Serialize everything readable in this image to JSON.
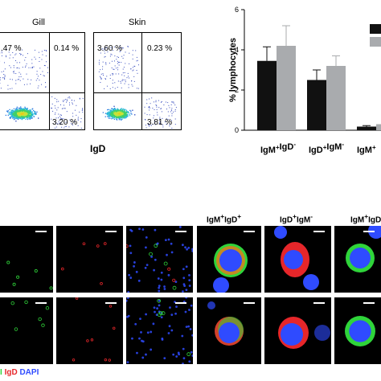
{
  "flow": {
    "gill_title": "Gill",
    "skin_title": "Skin",
    "gill_pcts": {
      "tl": ".47 %",
      "tr": "0.14 %",
      "br": "3.20 %"
    },
    "skin_pcts": {
      "tl": "3.60 %",
      "tr": "0.23 %",
      "br": "3.81 %"
    },
    "x_label": "IgD"
  },
  "chart_data": {
    "type": "bar",
    "ylabel": "% lymphocytes",
    "ylim": [
      0,
      6
    ],
    "yticks": [
      "0",
      "2",
      "4",
      "6"
    ],
    "categories": [
      "IgM+IgD-",
      "IgD+IgM-",
      "IgM+"
    ],
    "category_display": [
      {
        "a": "IgM",
        "a_sup": "+",
        "b": "IgD",
        "b_sup": "-"
      },
      {
        "a": "IgD",
        "a_sup": "+",
        "b": "IgM",
        "b_sup": "-"
      },
      {
        "a": "IgM",
        "a_sup": "+",
        "b": "",
        "b_sup": ""
      }
    ],
    "series": [
      {
        "color": "#111111",
        "values": [
          3.45,
          2.5,
          0.18
        ],
        "errors": [
          0.7,
          0.5,
          0.05
        ]
      },
      {
        "color": "#a9abae",
        "values": [
          4.2,
          3.2,
          0.3
        ],
        "errors": [
          1.0,
          0.5,
          0.05
        ]
      }
    ]
  },
  "micro": {
    "headers": [
      {
        "a": "IgM",
        "a_sup": "+",
        "b": "IgD",
        "b_sup": "+"
      },
      {
        "a": "IgD",
        "a_sup": "+",
        "b": "IgM",
        "b_sup": "-"
      },
      {
        "a": "IgM",
        "a_sup": "+",
        "b": "IgD",
        "b_sup": ""
      }
    ],
    "legend": {
      "a": "I",
      "b": "IgD",
      "c": "DAPI"
    },
    "colors": {
      "igm": "#2fd43a",
      "igd": "#e6262a",
      "dapi": "#2f4bff"
    }
  }
}
